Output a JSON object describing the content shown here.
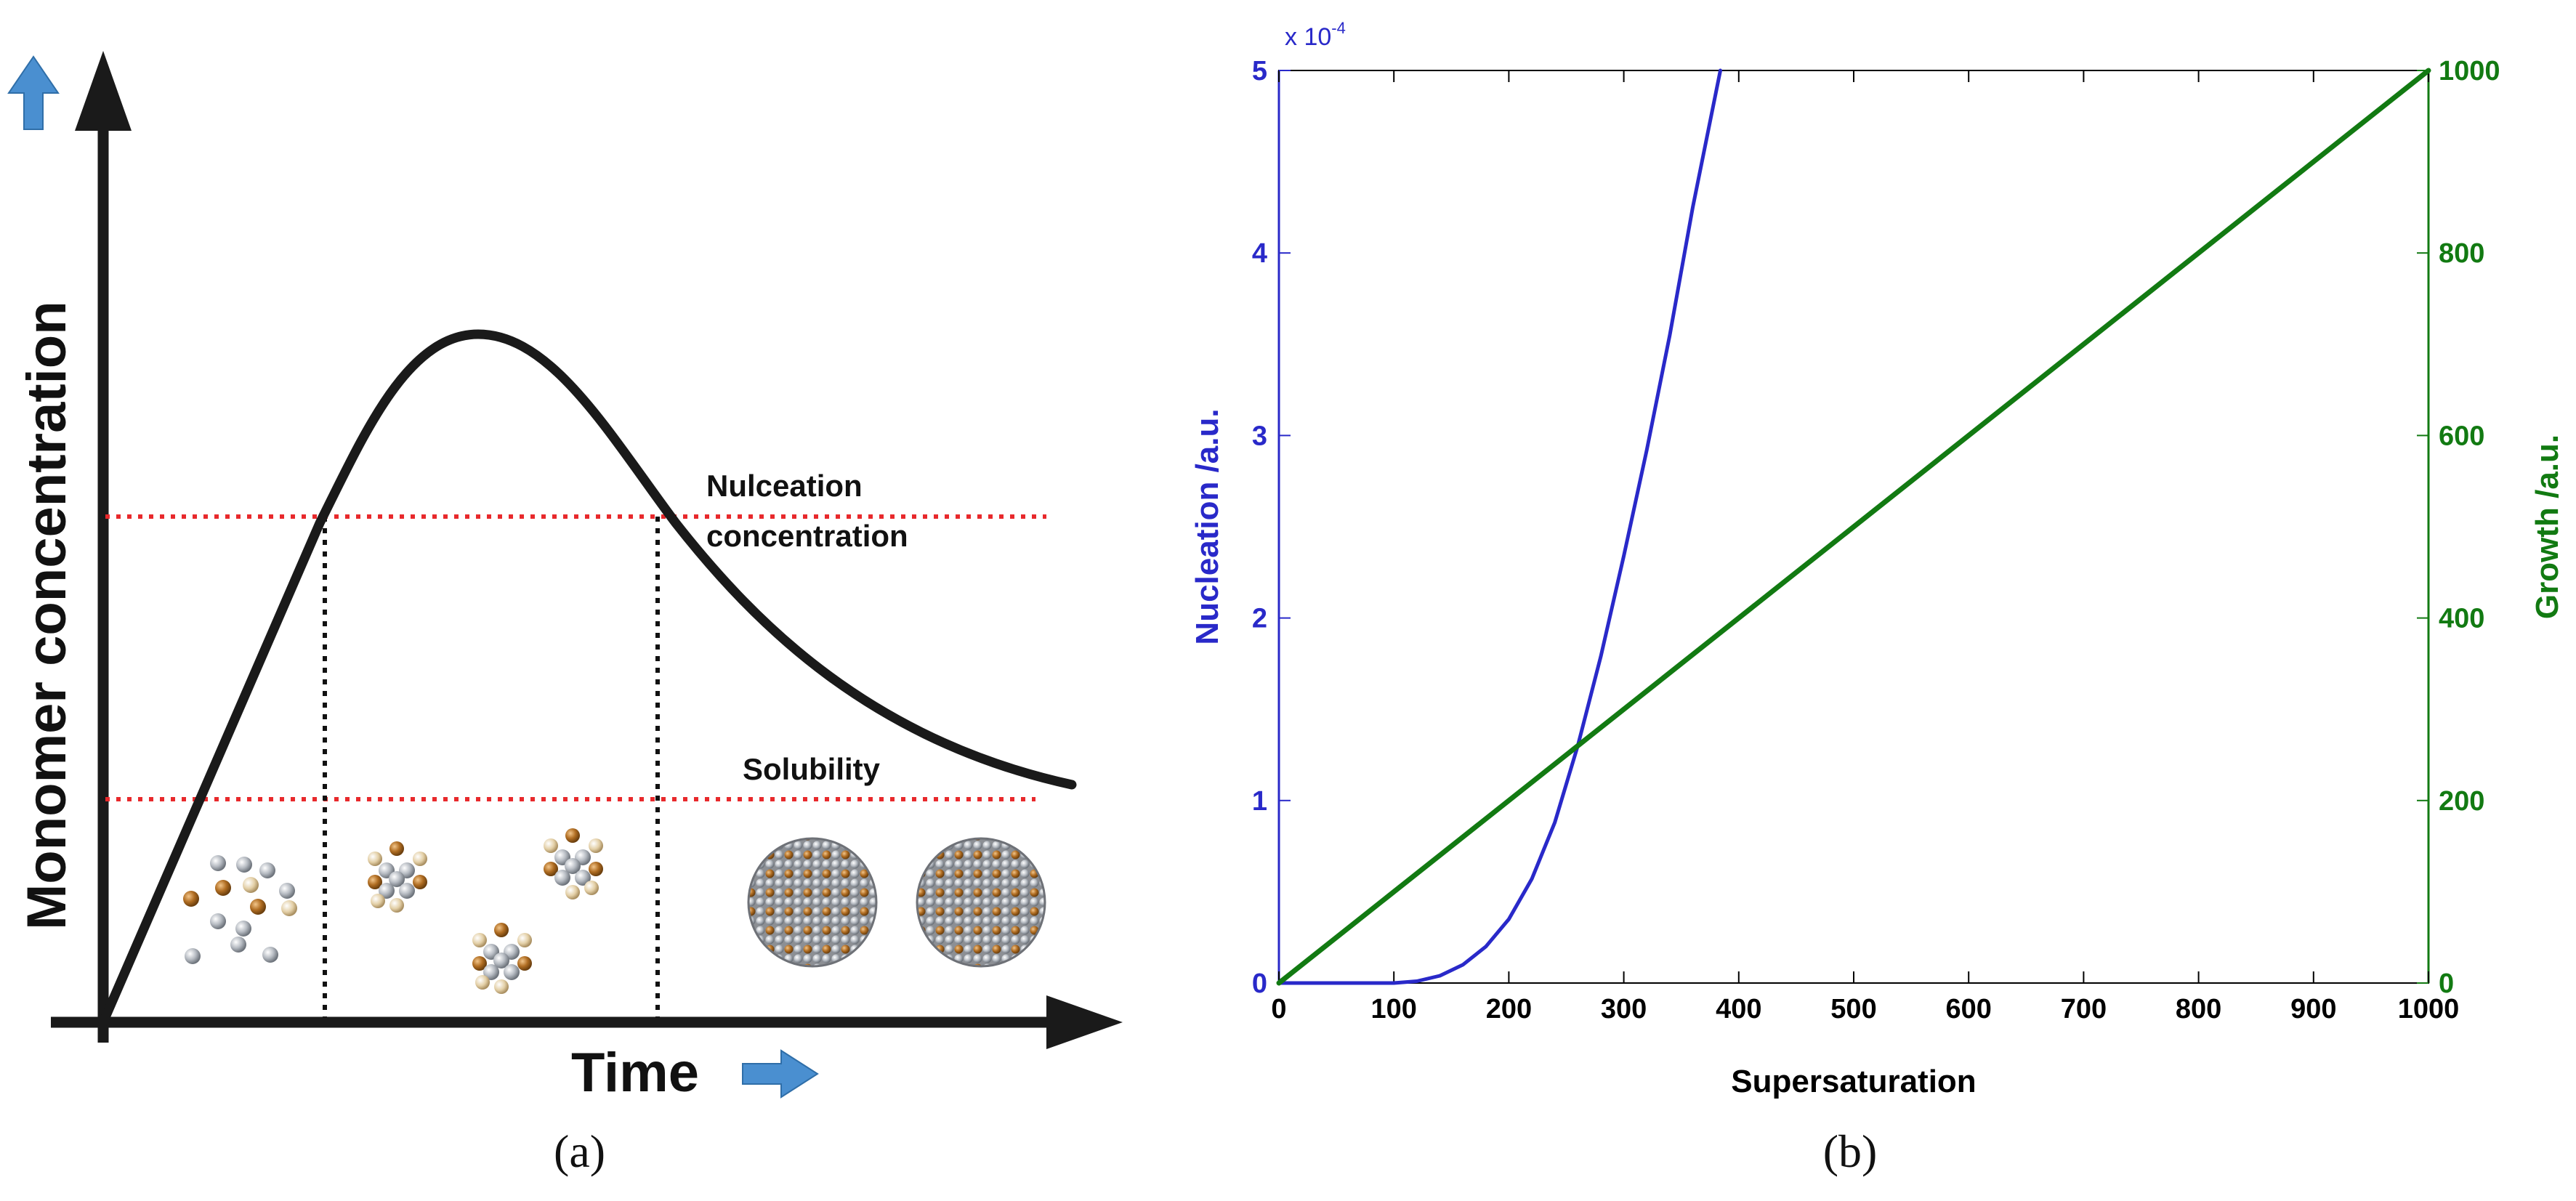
{
  "chart_data": [
    {
      "panel": "a",
      "type": "line",
      "title": "",
      "xlabel": "Time",
      "ylabel": "Monomer concentration",
      "caption": "(a)",
      "lines": {
        "nucleation_label_1": "Nulceation",
        "nucleation_label_2": "concentration",
        "solubility_label": "Solubility"
      },
      "colors": {
        "curve": "#1a1a1a",
        "threshold": "#e8292c",
        "arrow": "#4a8fd0",
        "dotted": "#111111"
      }
    },
    {
      "panel": "b",
      "type": "line",
      "caption": "(b)",
      "xlabel": "Supersaturation",
      "ylabel_left": "Nucleation /a.u.",
      "ylabel_right": "Growth /a.u.",
      "y_left_multiplier": "x 10",
      "y_left_exponent": "-4",
      "xlim": [
        0,
        1000
      ],
      "ylim_left": [
        0,
        5
      ],
      "ylim_right": [
        0,
        1000
      ],
      "x_ticks": [
        0,
        100,
        200,
        300,
        400,
        500,
        600,
        700,
        800,
        900,
        1000
      ],
      "y_left_ticks": [
        0,
        1,
        2,
        3,
        4,
        5
      ],
      "y_right_ticks": [
        0,
        200,
        400,
        600,
        800,
        1000
      ],
      "series": [
        {
          "name": "Nucleation",
          "axis": "left",
          "color": "#2929c9",
          "x": [
            0,
            100,
            120,
            140,
            160,
            180,
            200,
            220,
            240,
            260,
            280,
            300,
            320,
            340,
            360,
            384
          ],
          "y": [
            0,
            0,
            0.01,
            0.04,
            0.1,
            0.2,
            0.35,
            0.57,
            0.88,
            1.3,
            1.79,
            2.34,
            2.92,
            3.55,
            4.25,
            5.0
          ]
        },
        {
          "name": "Growth",
          "axis": "right",
          "color": "#127a12",
          "x": [
            0,
            1000
          ],
          "y": [
            0,
            1000
          ]
        }
      ]
    }
  ]
}
